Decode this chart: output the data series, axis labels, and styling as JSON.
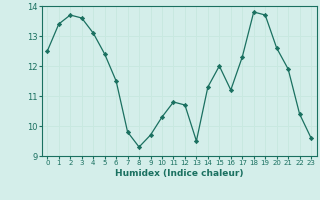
{
  "x": [
    0,
    1,
    2,
    3,
    4,
    5,
    6,
    7,
    8,
    9,
    10,
    11,
    12,
    13,
    14,
    15,
    16,
    17,
    18,
    19,
    20,
    21,
    22,
    23
  ],
  "y": [
    12.5,
    13.4,
    13.7,
    13.6,
    13.1,
    12.4,
    11.5,
    9.8,
    9.3,
    9.7,
    10.3,
    10.8,
    10.7,
    9.5,
    11.3,
    12.0,
    11.2,
    12.3,
    13.8,
    13.7,
    12.6,
    11.9,
    10.4,
    9.6
  ],
  "line_color": "#1a7060",
  "marker": "D",
  "marker_size": 2.2,
  "xlabel": "Humidex (Indice chaleur)",
  "ylim": [
    9,
    14
  ],
  "xlim": [
    -0.5,
    23.5
  ],
  "yticks": [
    9,
    10,
    11,
    12,
    13,
    14
  ],
  "xticks": [
    0,
    1,
    2,
    3,
    4,
    5,
    6,
    7,
    8,
    9,
    10,
    11,
    12,
    13,
    14,
    15,
    16,
    17,
    18,
    19,
    20,
    21,
    22,
    23
  ],
  "grid_color": "#c8e8e0",
  "bg_color": "#d4eeea",
  "spine_color": "#1a7060"
}
